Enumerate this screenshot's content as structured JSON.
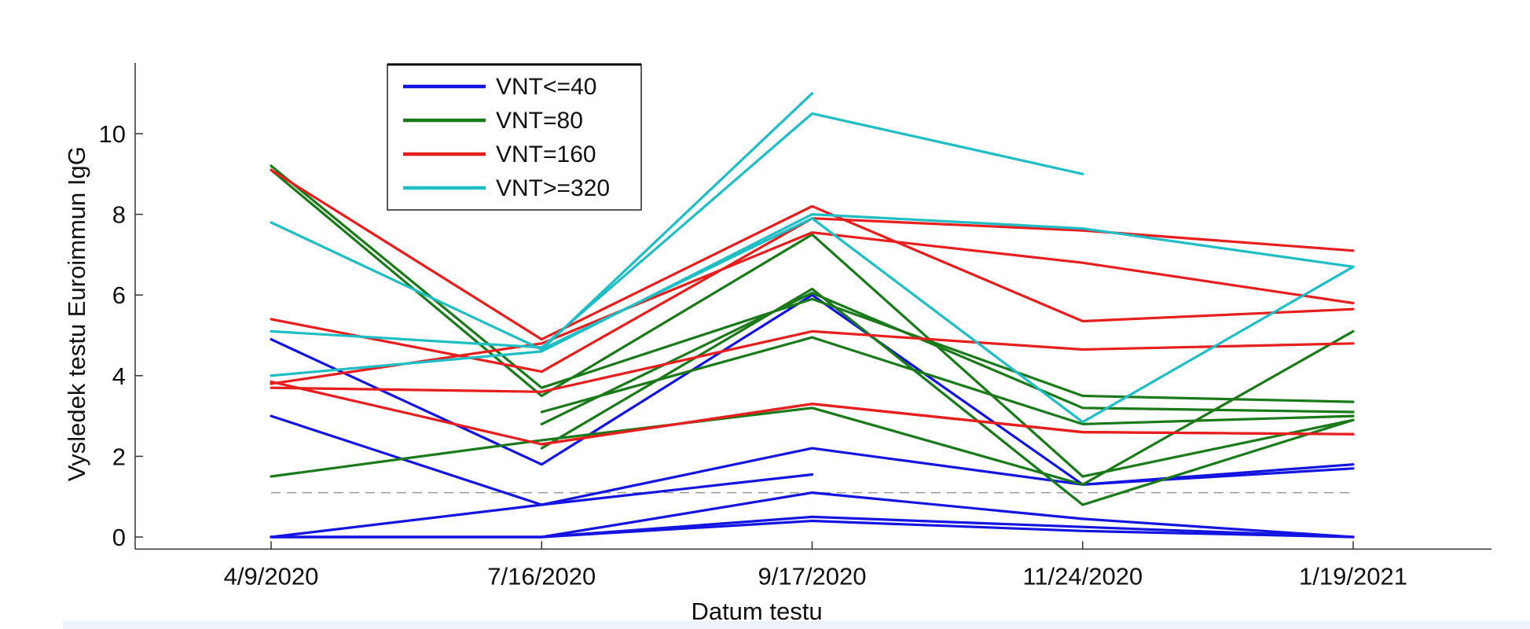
{
  "chart_data": {
    "type": "line",
    "title": "",
    "xlabel": "Datum testu",
    "ylabel": "Vysledek testu Euroimmun IgG",
    "categories": [
      "4/9/2020",
      "7/16/2020",
      "9/17/2020",
      "11/24/2020",
      "1/19/2021"
    ],
    "ylim": [
      -0.3,
      11.8
    ],
    "yticks": [
      0,
      2,
      4,
      6,
      8,
      10
    ],
    "grid": false,
    "legend_position": "top-left",
    "reference_line": {
      "y": 1.1,
      "style": "dashed",
      "color": "#9a9a9a"
    },
    "groups": [
      {
        "name": "VNT<=40",
        "color": "#1414e0"
      },
      {
        "name": "VNT=80",
        "color": "#1a7a1a"
      },
      {
        "name": "VNT=160",
        "color": "#e61e1e"
      },
      {
        "name": "VNT>=320",
        "color": "#1fbdc4"
      }
    ],
    "series": [
      {
        "group": 0,
        "values": [
          4.9,
          1.8,
          6.0,
          1.3,
          1.8
        ]
      },
      {
        "group": 0,
        "values": [
          3.0,
          0.8,
          2.2,
          1.3,
          1.7
        ]
      },
      {
        "group": 0,
        "values": [
          0.0,
          0.8,
          1.55,
          null,
          null
        ]
      },
      {
        "group": 0,
        "values": [
          0.0,
          0.0,
          1.1,
          0.45,
          0.0
        ]
      },
      {
        "group": 0,
        "values": [
          0.0,
          0.0,
          0.5,
          0.25,
          0.0
        ]
      },
      {
        "group": 0,
        "values": [
          0.0,
          0.0,
          0.4,
          0.15,
          0.0
        ]
      },
      {
        "group": 1,
        "values": [
          9.2,
          3.7,
          5.9,
          3.5,
          3.35
        ]
      },
      {
        "group": 1,
        "values": [
          9.1,
          3.5,
          7.5,
          1.5,
          2.9
        ]
      },
      {
        "group": 1,
        "values": [
          null,
          2.2,
          6.15,
          0.8,
          2.9
        ]
      },
      {
        "group": 1,
        "values": [
          null,
          2.8,
          6.05,
          3.2,
          3.1
        ]
      },
      {
        "group": 1,
        "values": [
          null,
          3.1,
          4.95,
          2.8,
          3.0
        ]
      },
      {
        "group": 1,
        "values": [
          1.5,
          2.4,
          3.2,
          1.3,
          5.1
        ]
      },
      {
        "group": 2,
        "values": [
          9.1,
          4.9,
          8.2,
          5.35,
          5.65
        ]
      },
      {
        "group": 2,
        "values": [
          5.4,
          4.1,
          7.9,
          7.6,
          7.1
        ]
      },
      {
        "group": 2,
        "values": [
          3.8,
          4.8,
          7.55,
          6.8,
          5.8
        ]
      },
      {
        "group": 2,
        "values": [
          3.7,
          3.6,
          5.1,
          4.65,
          4.8
        ]
      },
      {
        "group": 2,
        "values": [
          3.85,
          2.3,
          3.3,
          2.6,
          2.55
        ]
      },
      {
        "group": 2,
        "values": [
          null,
          2.3,
          3.3,
          2.6,
          2.55
        ]
      },
      {
        "group": 3,
        "values": [
          7.8,
          4.65,
          11.0,
          null,
          null
        ]
      },
      {
        "group": 3,
        "values": [
          5.1,
          4.7,
          10.5,
          9.0,
          null
        ]
      },
      {
        "group": 3,
        "values": [
          4.0,
          4.6,
          8.0,
          7.65,
          6.7
        ]
      },
      {
        "group": 3,
        "values": [
          null,
          4.65,
          7.9,
          2.85,
          6.7
        ]
      }
    ]
  }
}
